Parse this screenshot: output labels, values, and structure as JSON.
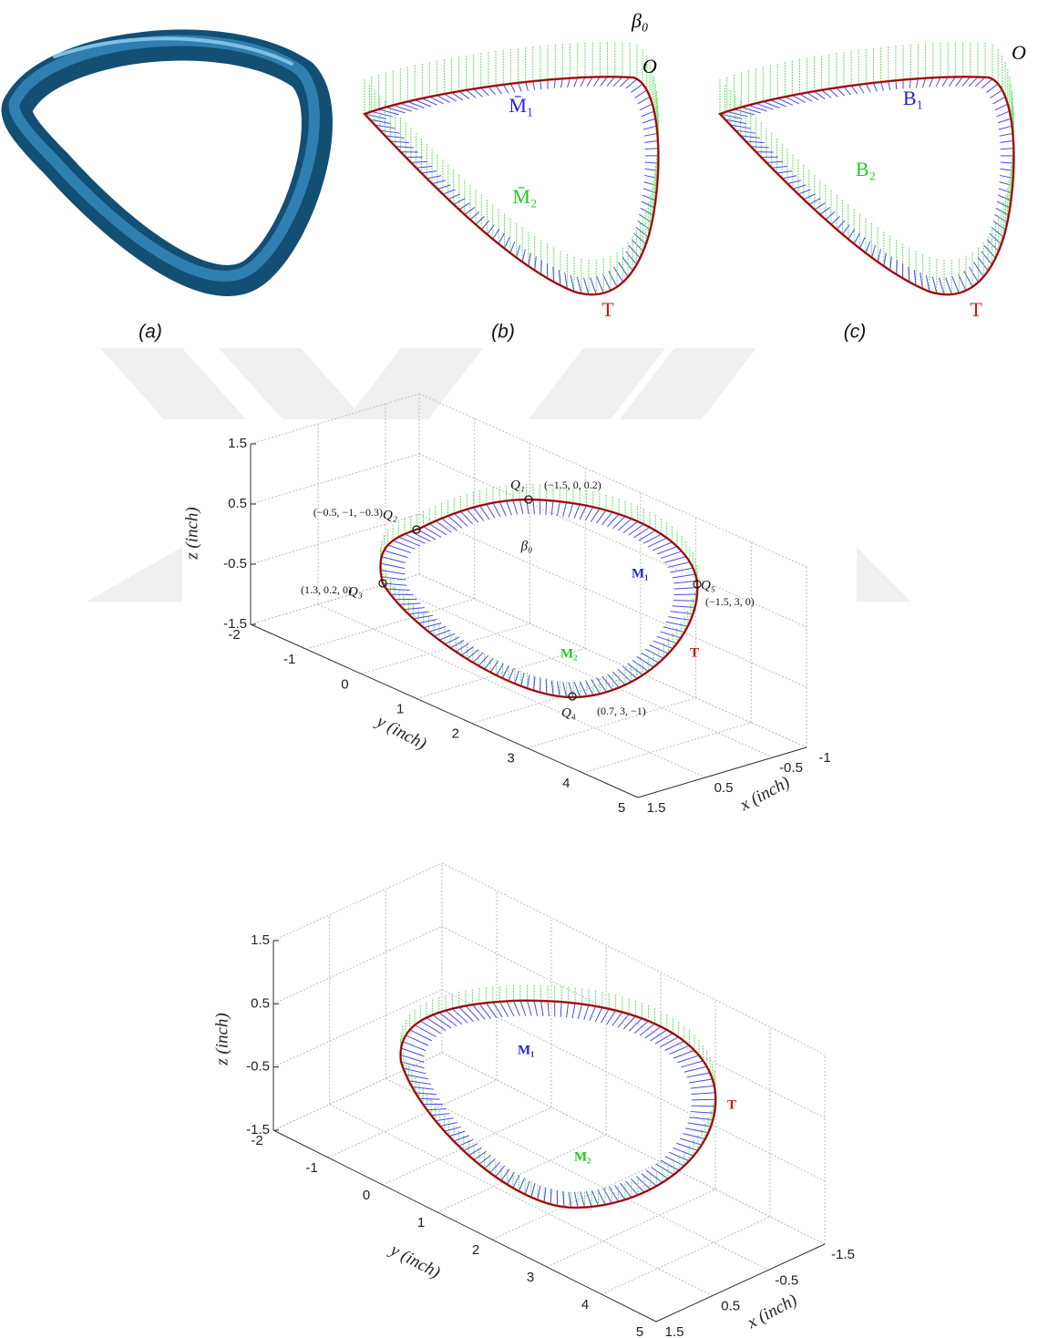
{
  "figure_top": {
    "panels": [
      {
        "caption": "(a)"
      },
      {
        "caption": "(b)",
        "beta": "β₀",
        "origin": "O",
        "m1": "M̄₁",
        "m2": "M̄₂",
        "t": "T"
      },
      {
        "caption": "(c)",
        "origin": "O",
        "b1": "B₁",
        "b2": "B₂",
        "t": "T"
      }
    ]
  },
  "plots": [
    {
      "z_label": "z (inch)",
      "y_label": "y (inch)",
      "x_label": "x (inch)",
      "z_ticks": [
        1.5,
        0.5,
        -0.5,
        -1.5
      ],
      "y_ticks": [
        -2,
        -1,
        0,
        1,
        2,
        3,
        4,
        5
      ],
      "x_ticks": [
        1.5,
        0.5,
        -0.5,
        -1
      ],
      "points": [
        {
          "name": "Q₁",
          "coords": "(−1.5, 0, 0.2)"
        },
        {
          "name": "Q₂",
          "coords": "(−0.5, −1, −0.3)"
        },
        {
          "name": "Q₃",
          "coords": "(1.3, 0.2, 0)"
        },
        {
          "name": "Q₄",
          "coords": "(0.7, 3, −1)"
        },
        {
          "name": "Q₅",
          "coords": "(−1.5, 3, 0)"
        }
      ],
      "beta": "β₀",
      "m1": "M₁",
      "m2": "M₂",
      "t": "T"
    },
    {
      "z_label": "z (inch)",
      "y_label": "y (inch)",
      "x_label": "x (inch)",
      "z_ticks": [
        1.5,
        0.5,
        -0.5,
        -1.5
      ],
      "y_ticks": [
        -2,
        -1,
        0,
        1,
        2,
        3,
        4,
        5
      ],
      "x_ticks": [
        1.5,
        0.5,
        -0.5,
        -1.5
      ],
      "m1": "M₁",
      "m2": "M₂",
      "t": "T"
    }
  ]
}
